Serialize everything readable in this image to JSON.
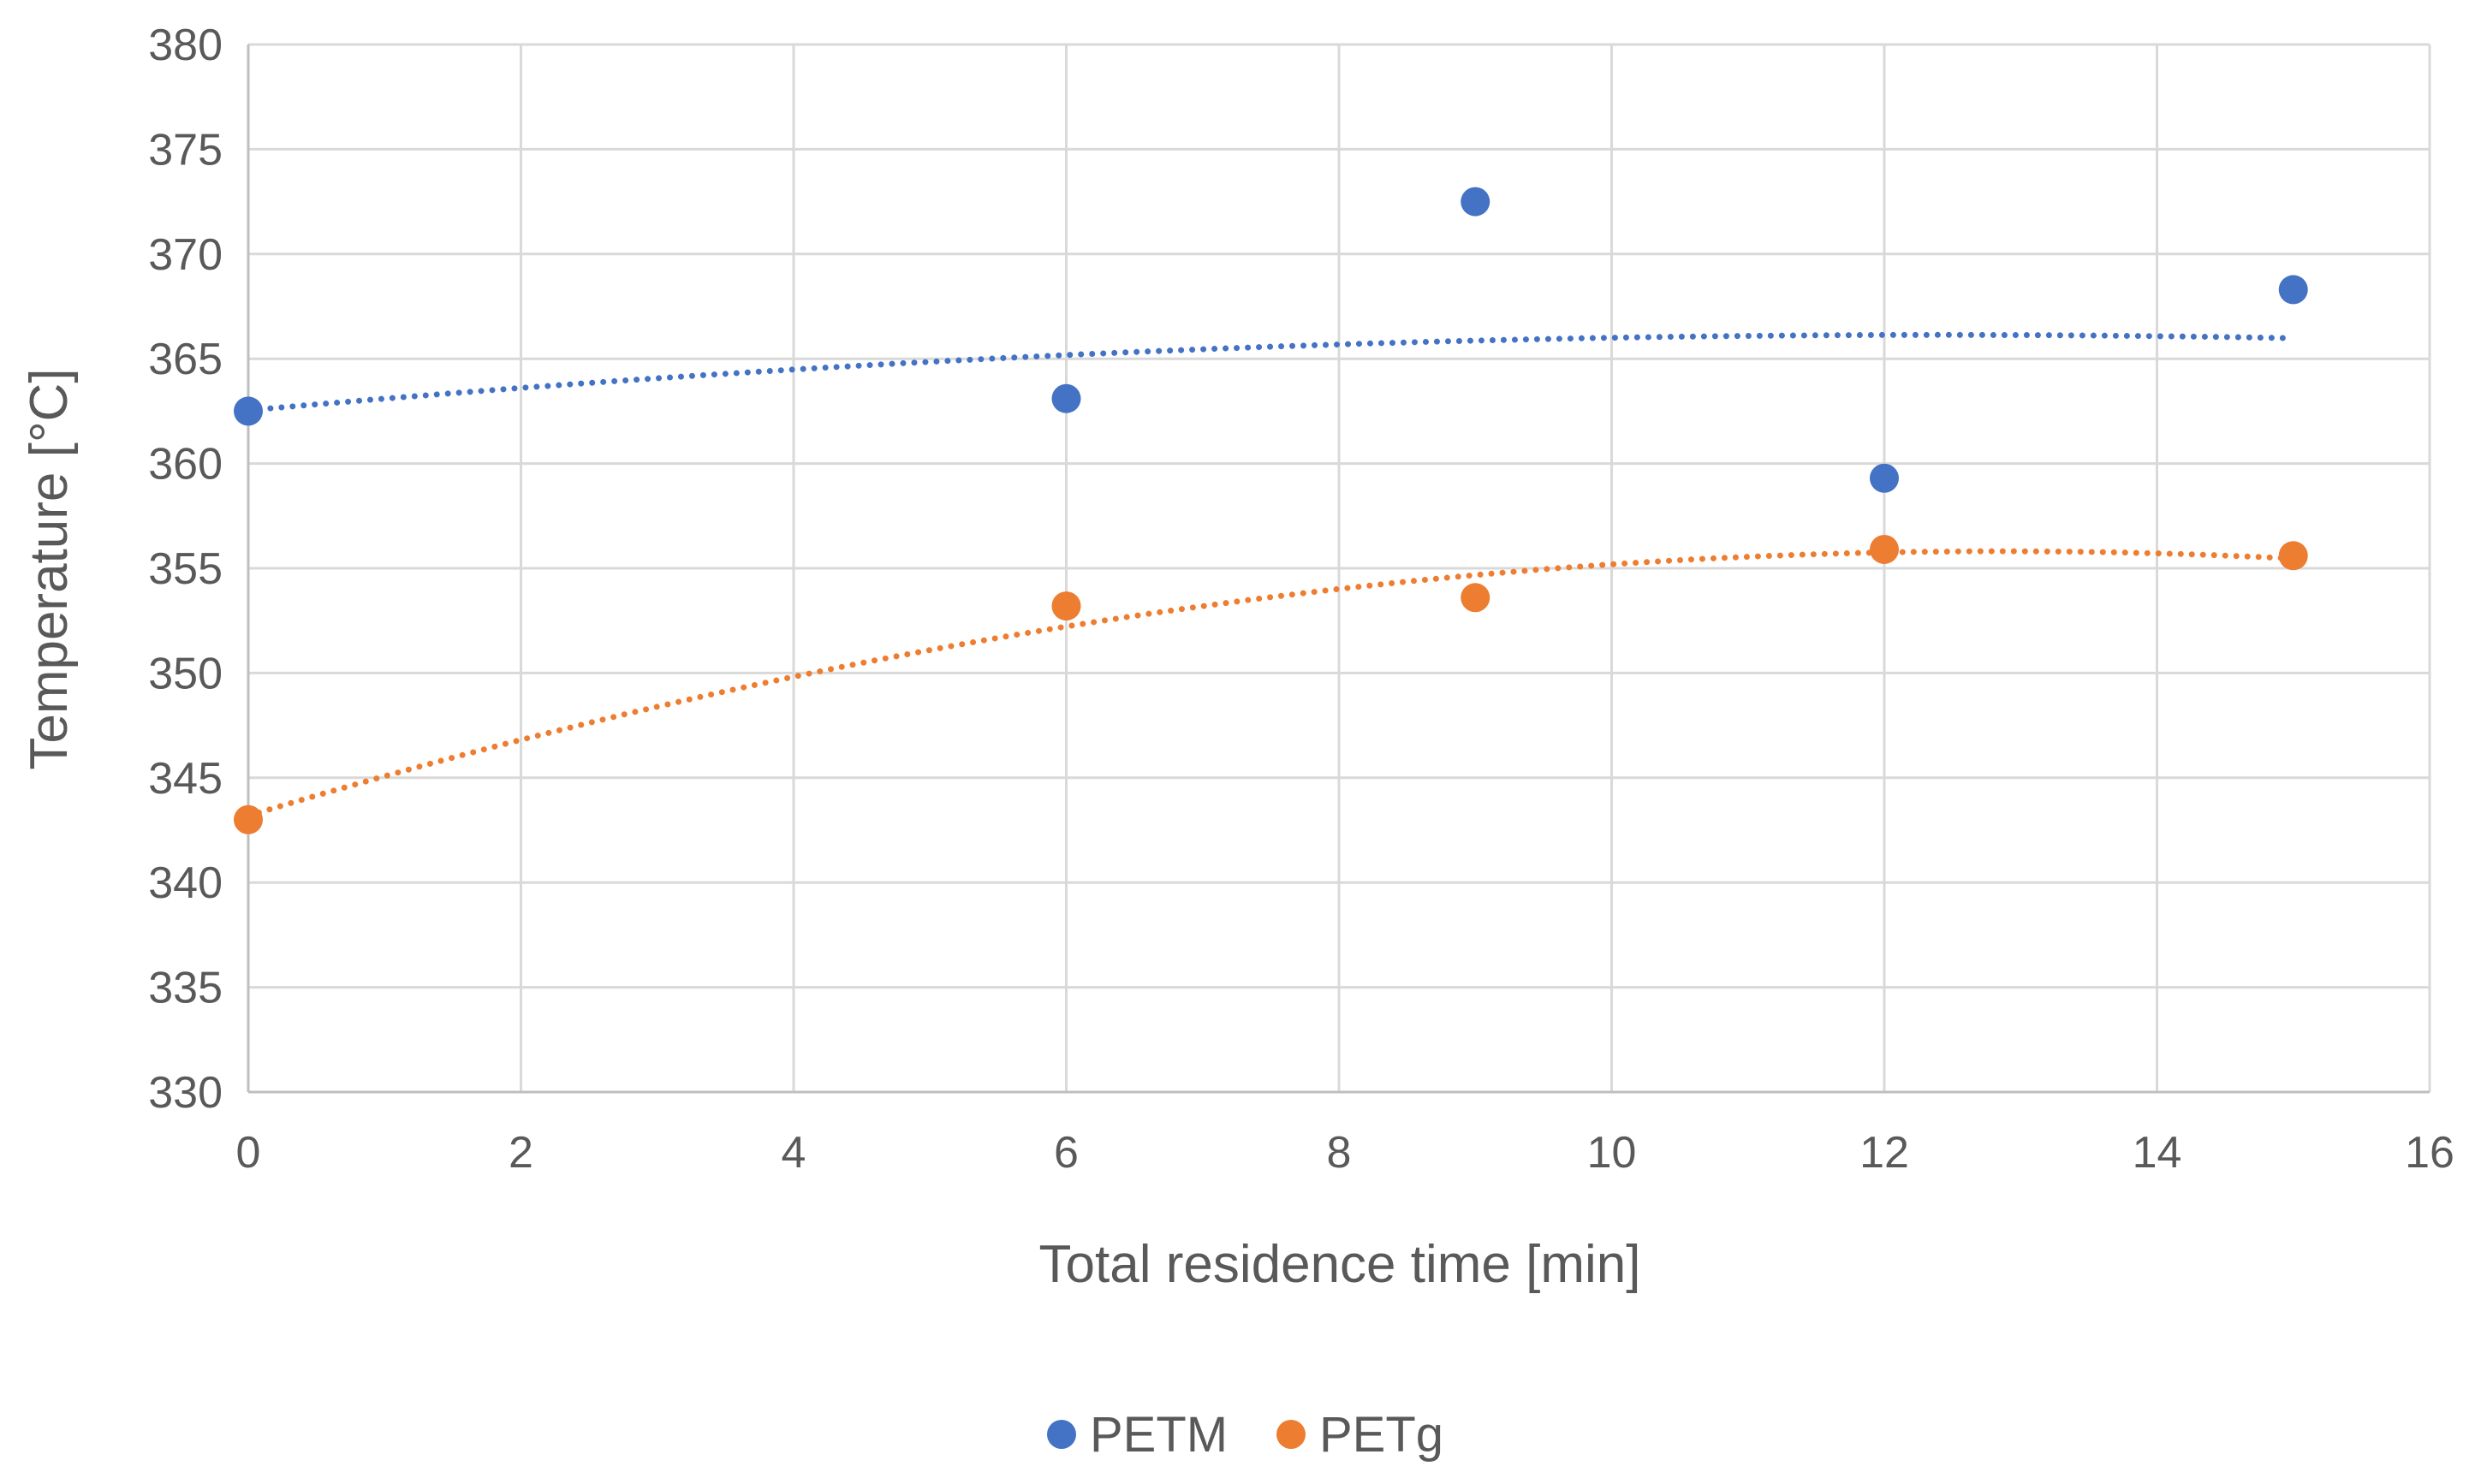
{
  "chart_data": {
    "type": "scatter",
    "title": "",
    "xlabel": "Total residence time [min]",
    "ylabel": "Temperature [°C]",
    "xlim": [
      0,
      16
    ],
    "ylim": [
      330,
      380
    ],
    "xticks": [
      0,
      2,
      4,
      6,
      8,
      10,
      12,
      14,
      16
    ],
    "yticks": [
      330,
      335,
      340,
      345,
      350,
      355,
      360,
      365,
      370,
      375,
      380
    ],
    "grid": true,
    "legend_position": "bottom",
    "series": [
      {
        "name": "PETM",
        "color": "#4472C4",
        "x": [
          0,
          6,
          9,
          12,
          15
        ],
        "y": [
          362.5,
          363.1,
          372.5,
          359.3,
          368.3
        ],
        "trendline": "polynomial-2"
      },
      {
        "name": "PETg",
        "color": "#ED7D31",
        "x": [
          0,
          6,
          9,
          12,
          15
        ],
        "y": [
          343.0,
          353.2,
          353.6,
          355.9,
          355.6
        ],
        "trendline": "polynomial-2"
      }
    ]
  }
}
